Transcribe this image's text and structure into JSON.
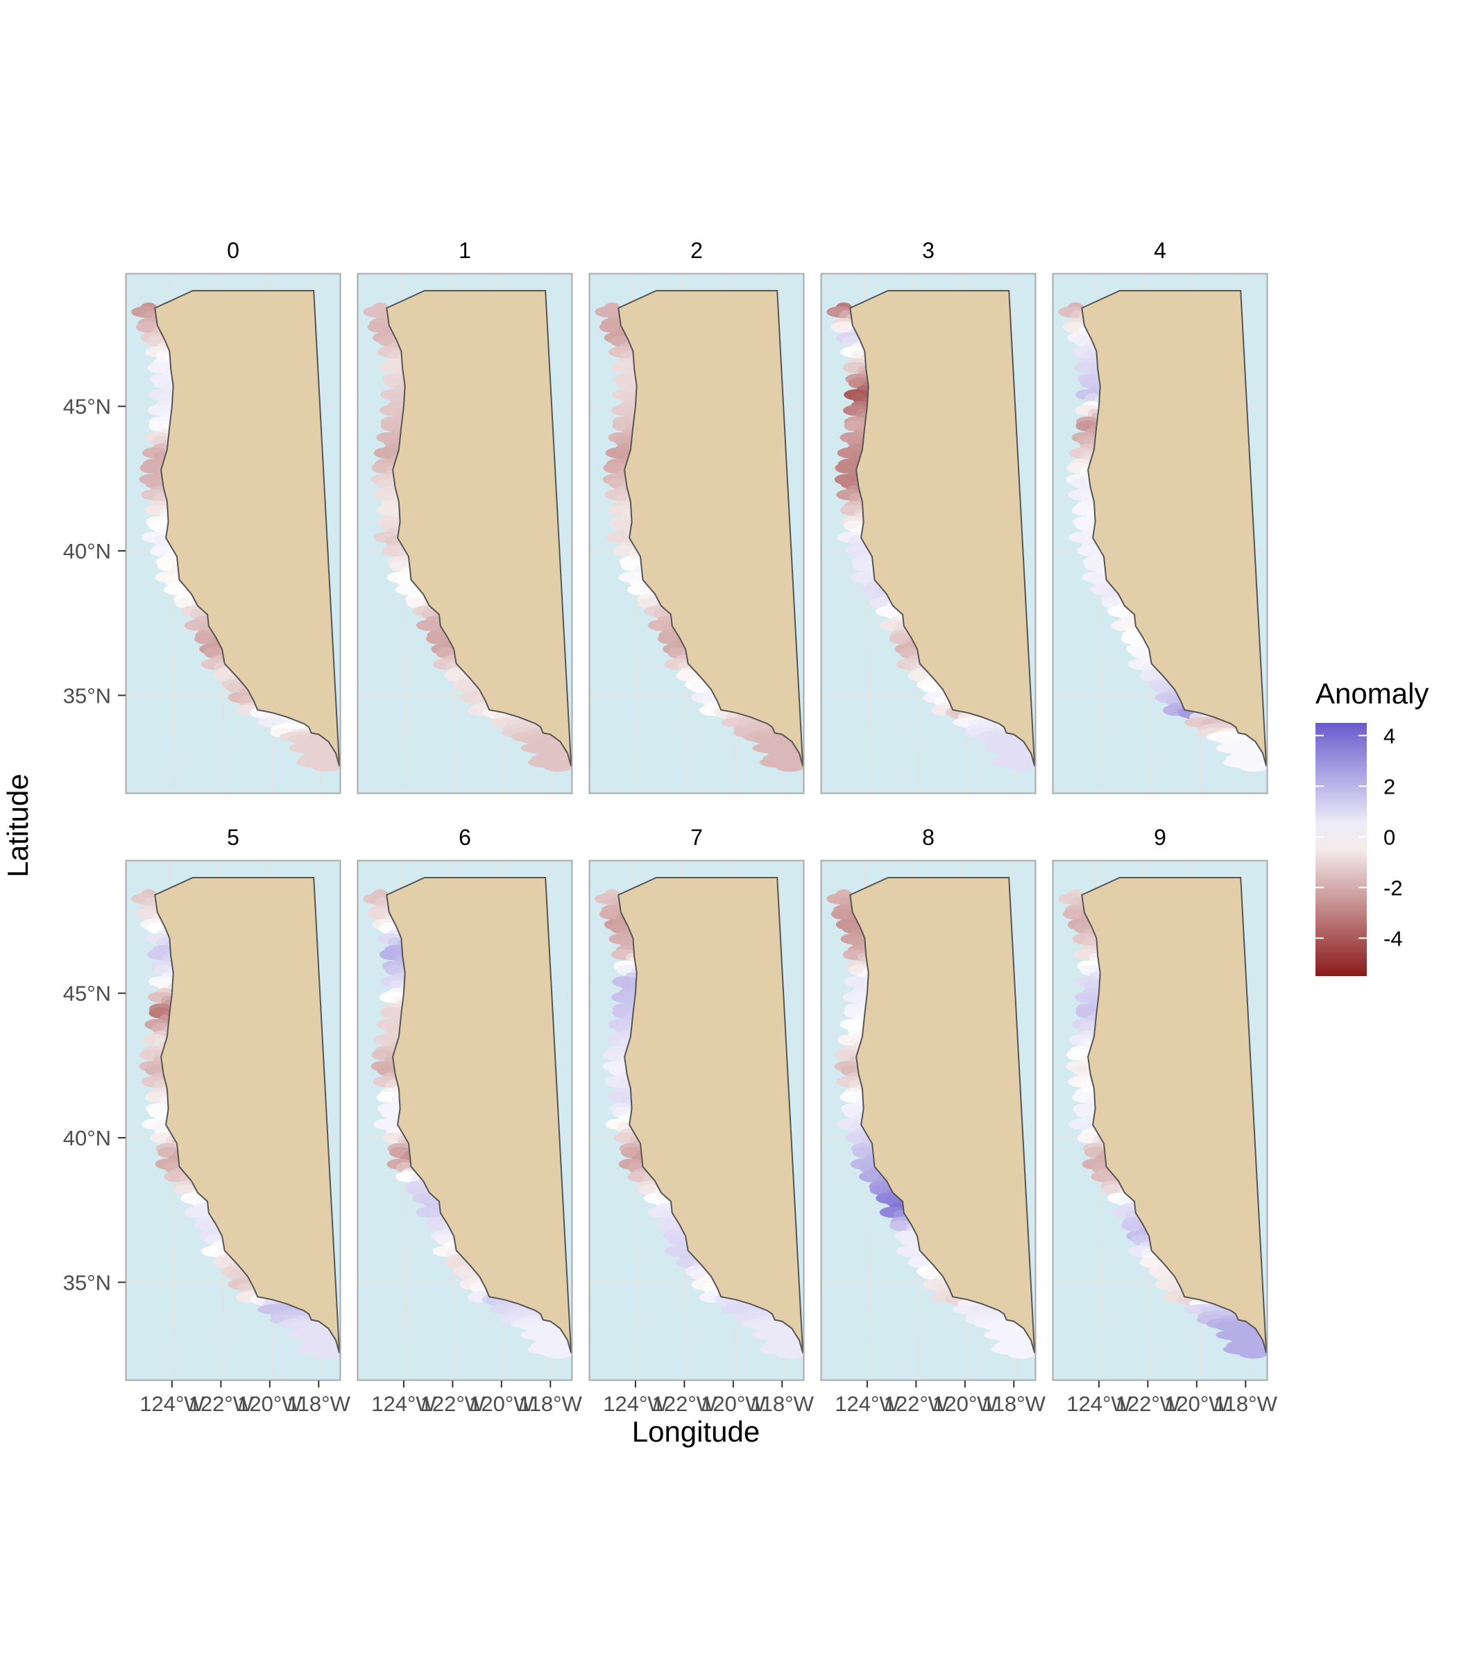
{
  "facets": [
    "0",
    "1",
    "2",
    "3",
    "4",
    "5",
    "6",
    "7",
    "8",
    "9"
  ],
  "axes": {
    "xlabel": "Longitude",
    "ylabel": "Latitude",
    "x_ticks": [
      "124°W",
      "122°W",
      "120°W",
      "118°W"
    ],
    "x_tick_values": [
      -124,
      -122,
      -120,
      -118
    ],
    "y_ticks": [
      "45°N",
      "40°N",
      "35°N"
    ],
    "y_tick_values": [
      45,
      40,
      35
    ]
  },
  "legend": {
    "title": "Anomaly",
    "ticks": [
      "4",
      "2",
      "0",
      "-2",
      "-4"
    ],
    "tick_values": [
      4,
      2,
      0,
      -2,
      -4
    ],
    "range": [
      -5.5,
      4.5
    ],
    "low_color": "#8b1a1a",
    "mid_color": "#ffffff",
    "high_color": "#6a5acd"
  },
  "colors": {
    "ocean": "#d4eaf1",
    "land": "#e2cfa9",
    "coast": "#555555",
    "grid": "#e6e2dc",
    "panel_border": "#a8a8a8"
  },
  "chart_data": {
    "type": "heatmap",
    "panel_xlim": [
      -125.9,
      -117.1
    ],
    "panel_ylim": [
      31.6,
      49.6
    ],
    "coastline": [
      [
        -124.7,
        48.4
      ],
      [
        -124.6,
        47.8
      ],
      [
        -124.3,
        47.3
      ],
      [
        -124.1,
        46.9
      ],
      [
        -124.05,
        46.3
      ],
      [
        -123.95,
        45.7
      ],
      [
        -124.0,
        45.0
      ],
      [
        -124.1,
        44.3
      ],
      [
        -124.2,
        43.5
      ],
      [
        -124.45,
        42.8
      ],
      [
        -124.35,
        42.2
      ],
      [
        -124.2,
        41.7
      ],
      [
        -124.15,
        41.0
      ],
      [
        -124.25,
        40.45
      ],
      [
        -123.8,
        39.8
      ],
      [
        -123.7,
        39.0
      ],
      [
        -123.2,
        38.5
      ],
      [
        -122.95,
        38.1
      ],
      [
        -122.55,
        37.8
      ],
      [
        -122.5,
        37.4
      ],
      [
        -122.2,
        37.0
      ],
      [
        -121.95,
        36.6
      ],
      [
        -121.85,
        36.1
      ],
      [
        -121.3,
        35.6
      ],
      [
        -120.9,
        35.2
      ],
      [
        -120.65,
        34.8
      ],
      [
        -120.5,
        34.5
      ],
      [
        -119.9,
        34.4
      ],
      [
        -119.3,
        34.25
      ],
      [
        -118.6,
        34.02
      ],
      [
        -118.4,
        33.9
      ],
      [
        -118.3,
        33.7
      ],
      [
        -118.0,
        33.65
      ],
      [
        -117.6,
        33.4
      ],
      [
        -117.3,
        33.0
      ],
      [
        -117.15,
        32.55
      ]
    ],
    "land_corners": [
      [
        -117.15,
        32.55
      ],
      [
        -118.2,
        49.0
      ],
      [
        -123.15,
        49.0
      ]
    ],
    "anomaly_segments": [
      [
        -2.5,
        -1.2,
        0.3,
        0.6,
        0.2,
        -2.0,
        -1.8,
        -0.4,
        0.5,
        -0.3,
        0.1,
        -1.4,
        -2.3,
        -0.6,
        -1.6,
        0.2,
        0.5,
        -1.1
      ],
      [
        -1.5,
        -1.8,
        -0.7,
        -1.2,
        -1.5,
        -2.0,
        -0.9,
        -0.5,
        -1.3,
        -0.2,
        0.2,
        -1.8,
        -2.2,
        -0.5,
        -0.9,
        -0.3,
        -0.8,
        -1.4
      ],
      [
        -1.8,
        -2.2,
        -0.8,
        -1.0,
        -1.4,
        -2.3,
        -1.5,
        -0.6,
        -0.9,
        0.3,
        -0.2,
        -1.6,
        -2.1,
        -0.3,
        0.4,
        -0.5,
        -1.2,
        -1.7
      ],
      [
        -3.2,
        1.2,
        -1.0,
        -4.0,
        -2.0,
        -2.8,
        -3.0,
        -1.0,
        0.8,
        0.5,
        1.0,
        -0.4,
        -1.8,
        -0.5,
        0.3,
        -1.3,
        0.4,
        0.9
      ],
      [
        -1.8,
        0.3,
        1.0,
        1.6,
        -2.5,
        -1.0,
        0.5,
        0.2,
        0.4,
        0.3,
        0.6,
        -0.3,
        0.1,
        0.5,
        1.4,
        2.8,
        -1.6,
        0.2
      ],
      [
        -1.4,
        -0.3,
        1.5,
        0.2,
        -3.2,
        -0.6,
        -1.8,
        -0.3,
        0.3,
        -2.2,
        -1.0,
        0.5,
        0.8,
        -0.6,
        -1.3,
        0.3,
        1.7,
        0.8
      ],
      [
        -1.5,
        -0.5,
        2.2,
        1.0,
        -1.0,
        -1.0,
        -2.0,
        0.3,
        0.3,
        -2.8,
        1.0,
        1.4,
        0.6,
        -0.8,
        -0.4,
        1.3,
        1.0,
        0.4
      ],
      [
        -1.3,
        -2.3,
        -1.7,
        1.8,
        1.5,
        0.8,
        0.3,
        1.0,
        -0.5,
        -2.4,
        -0.9,
        0.5,
        1.0,
        1.2,
        -0.2,
        0.8,
        1.0,
        0.6
      ],
      [
        -1.8,
        -2.6,
        -2.0,
        0.6,
        0.3,
        -0.3,
        -1.7,
        0.2,
        0.8,
        1.8,
        2.5,
        3.8,
        0.5,
        0.5,
        -0.6,
        -1.0,
        0.6,
        0.3
      ],
      [
        -1.0,
        -2.0,
        -0.8,
        1.0,
        1.6,
        0.4,
        -0.5,
        0.3,
        0.5,
        -2.0,
        -1.4,
        0.8,
        1.8,
        -0.3,
        -0.5,
        -1.0,
        1.2,
        2.2
      ]
    ]
  }
}
